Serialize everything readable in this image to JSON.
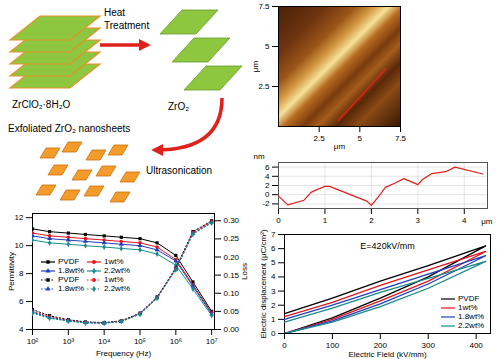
{
  "diagram": {
    "nodes": [
      {
        "label": "ZrClO₂·8H₂O"
      },
      {
        "label": "ZrO₂"
      },
      {
        "label": "Exfoliated ZrO₂ nanosheets"
      }
    ],
    "edges": [
      {
        "from": 0,
        "to": 1,
        "label": "Heat Treatment"
      },
      {
        "from": 1,
        "to": 2,
        "label": "Ultrasonication"
      }
    ]
  },
  "chart_data": [
    {
      "type": "image",
      "xlim": [
        0,
        7.5
      ],
      "ylim": [
        0,
        7.5
      ],
      "xticks": [
        2.5,
        5,
        7.5
      ],
      "yticks": [
        2.5,
        5,
        7.5
      ],
      "x_label": "μm",
      "y_label": "μm",
      "series": [
        {
          "type": "line",
          "color": "#e32119",
          "x": [
            3.7,
            6.6
          ],
          "values": [
            0.4,
            3.6
          ]
        }
      ]
    },
    {
      "type": "line",
      "x": [
        0,
        0.2,
        0.55,
        0.7,
        0.8,
        1.0,
        1.1,
        1.9,
        2.0,
        2.2,
        2.3,
        2.5,
        2.7,
        3.0,
        3.1,
        3.3,
        3.6,
        3.8,
        4.4
      ],
      "values": [
        -0.3,
        -2.2,
        -1.2,
        0.5,
        1.0,
        1.8,
        1.8,
        -1.4,
        -2.3,
        0.2,
        1.6,
        2.5,
        3.5,
        2.2,
        3.3,
        4.6,
        5.0,
        6.0,
        4.5
      ],
      "color": "#e32119",
      "xlim": [
        0,
        4.5
      ],
      "xticks": [
        0,
        1,
        2,
        3,
        4
      ],
      "x_label": "μm",
      "ylim": [
        -3,
        7
      ],
      "yticks": [
        -2,
        0,
        2,
        4,
        6
      ],
      "y_label": "nm",
      "grid": true
    },
    {
      "type": "line",
      "log": "x",
      "x": [
        100,
        300,
        1000,
        3000,
        10000,
        30000,
        100000,
        300000,
        1000000,
        3000000,
        10000000
      ],
      "xlim": [
        100,
        12000000
      ],
      "xticks": [
        {
          "value": 100,
          "label": "10²"
        },
        {
          "value": 1000,
          "label": "10³"
        },
        {
          "value": 10000,
          "label": "10⁴"
        },
        {
          "value": 100000,
          "label": "10⁵"
        },
        {
          "value": 1000000,
          "label": "10⁶"
        },
        {
          "value": 10000000,
          "label": "10⁷"
        }
      ],
      "x_label": "Frequency (Hz)",
      "ylim": [
        4,
        12.3
      ],
      "yticks": [
        4,
        6,
        8,
        10,
        12
      ],
      "y_label": "Permittivity",
      "y2lim": [
        0,
        0.32
      ],
      "y2ticks": [
        {
          "value": 0,
          "label": "0.00"
        },
        {
          "value": 0.05,
          "label": "0.05"
        },
        {
          "value": 0.1,
          "label": "0.10"
        },
        {
          "value": 0.15,
          "label": "0.15"
        },
        {
          "value": 0.2,
          "label": "0.20"
        },
        {
          "value": 0.25,
          "label": "0.25"
        },
        {
          "value": 0.3,
          "label": "0.30"
        }
      ],
      "y2_label": "Loss",
      "legend": "left",
      "series": [
        {
          "name": "PVDF",
          "color": "#000000",
          "marker": "square",
          "line_style": "solid",
          "values": [
            11.2,
            11.0,
            10.9,
            10.8,
            10.7,
            10.6,
            10.5,
            10.2,
            9.3,
            7.4,
            5.3
          ]
        },
        {
          "name": "1wt%",
          "color": "#e8141b",
          "marker": "circle",
          "line_style": "solid",
          "values": [
            10.9,
            10.7,
            10.6,
            10.5,
            10.4,
            10.3,
            10.2,
            9.9,
            9.0,
            7.2,
            5.2
          ]
        },
        {
          "name": "1.8wt%",
          "color": "#1f3fbf",
          "marker": "triangle",
          "line_style": "solid",
          "values": [
            10.7,
            10.5,
            10.4,
            10.3,
            10.2,
            10.1,
            10.0,
            9.7,
            8.9,
            7.1,
            5.1
          ]
        },
        {
          "name": "2.2wt%",
          "color": "#1a8a8a",
          "marker": "diamond",
          "line_style": "solid",
          "values": [
            10.4,
            10.2,
            10.1,
            10.0,
            9.9,
            9.8,
            9.7,
            9.4,
            8.6,
            6.9,
            5.0
          ]
        },
        {
          "name": "PVDF",
          "color": "#000000",
          "marker": "square",
          "line_style": "dotted",
          "axis": "y2",
          "values": [
            0.055,
            0.038,
            0.027,
            0.021,
            0.019,
            0.024,
            0.045,
            0.09,
            0.17,
            0.27,
            0.3
          ]
        },
        {
          "name": "1wt%",
          "color": "#e8141b",
          "marker": "circle",
          "line_style": "dotted",
          "axis": "y2",
          "values": [
            0.05,
            0.035,
            0.025,
            0.02,
            0.018,
            0.023,
            0.044,
            0.088,
            0.168,
            0.268,
            0.298
          ]
        },
        {
          "name": "1.8wt%",
          "color": "#1f3fbf",
          "marker": "triangle",
          "line_style": "dotted",
          "axis": "y2",
          "values": [
            0.048,
            0.033,
            0.024,
            0.019,
            0.018,
            0.022,
            0.043,
            0.087,
            0.166,
            0.265,
            0.296
          ]
        },
        {
          "name": "2.2wt%",
          "color": "#1a8a8a",
          "marker": "diamond",
          "line_style": "dotted",
          "axis": "y2",
          "values": [
            0.045,
            0.031,
            0.023,
            0.018,
            0.017,
            0.022,
            0.042,
            0.086,
            0.165,
            0.263,
            0.294
          ]
        }
      ]
    },
    {
      "type": "line",
      "annotations": [
        "E=420kV/mm"
      ],
      "x": [
        0,
        100,
        200,
        300,
        420,
        300,
        200,
        100,
        0
      ],
      "xlim": [
        0,
        430
      ],
      "xticks": [
        0,
        100,
        200,
        300,
        400
      ],
      "x_label": "Electric Field (kV/mm)",
      "ylim": [
        0,
        7
      ],
      "yticks": [
        0,
        1,
        2,
        3,
        4,
        5,
        6,
        7
      ],
      "y_label": "Electric displacement (μC/cm²)",
      "legend": "lower right",
      "series": [
        {
          "name": "PVDF",
          "color": "#000000",
          "line_style": "solid",
          "values": [
            0,
            1.1,
            2.5,
            4.0,
            6.2,
            4.8,
            3.7,
            2.5,
            1.4
          ]
        },
        {
          "name": "1wt%",
          "color": "#e8141b",
          "line_style": "solid",
          "values": [
            0,
            1.0,
            2.3,
            3.7,
            5.8,
            4.5,
            3.4,
            2.2,
            1.2
          ]
        },
        {
          "name": "1.8wt%",
          "color": "#1f3fbf",
          "line_style": "solid",
          "values": [
            0,
            0.9,
            2.1,
            3.5,
            5.5,
            4.2,
            3.1,
            2.0,
            1.0
          ]
        },
        {
          "name": "2.2wt%",
          "color": "#1a8a8a",
          "line_style": "solid",
          "values": [
            0,
            0.8,
            1.9,
            3.2,
            5.1,
            3.9,
            2.9,
            1.8,
            0.8
          ]
        }
      ]
    }
  ]
}
